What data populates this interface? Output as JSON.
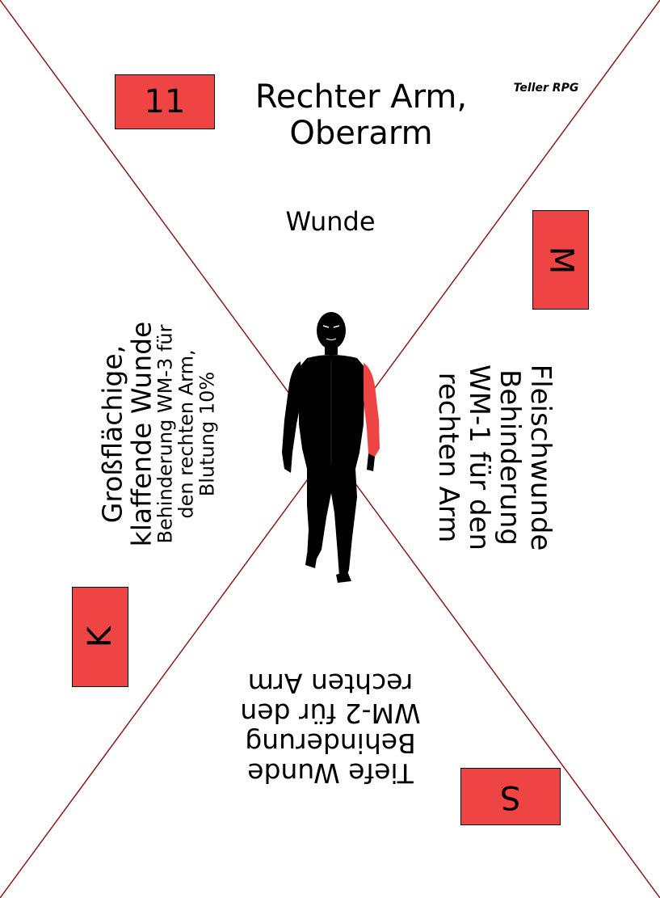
{
  "card": {
    "number": "11",
    "title_line1": "Rechter Arm,",
    "title_line2": "Oberarm",
    "brand": "Teller RPG",
    "subtitle": "Wunde",
    "colors": {
      "accent": "#ef4444",
      "line": "#8b1a1a",
      "text": "#000000"
    }
  },
  "icons": {
    "figure": "silhouette-figure-right-arm-highlighted"
  },
  "wounds": {
    "M": {
      "code": "M",
      "name": "Fleischwunde",
      "effect_line1": "Behinderung",
      "effect_line2": "WM-1 für den",
      "effect_line3": "rechten Arm"
    },
    "K": {
      "code": "K",
      "name_line1": "Großflächige,",
      "name_line2": "klaffende Wunde",
      "effect_line1": "Behinderung WM-3 für",
      "effect_line2": "den rechten Arm,",
      "effect_line3": "Blutung 10%"
    },
    "S": {
      "code": "S",
      "name": "Tiefe Wunde",
      "effect_line1": "Behinderung",
      "effect_line2": "WM-2 für den",
      "effect_line3": "rechten Arm"
    }
  }
}
